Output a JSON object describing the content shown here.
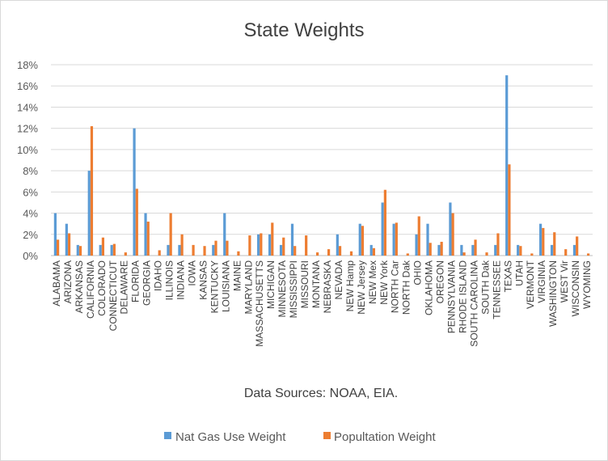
{
  "chart_data": {
    "type": "bar",
    "title": "State Weights",
    "annotation": "Data Sources: NOAA, EIA.",
    "ylim": [
      0,
      18
    ],
    "yticks": [
      "0%",
      "2%",
      "4%",
      "6%",
      "8%",
      "10%",
      "12%",
      "14%",
      "16%",
      "18%"
    ],
    "grid": true,
    "legend_position": "bottom",
    "categories": [
      "ALABAMA",
      "ARIZONA",
      "ARKANSAS",
      "CALIFORNIA",
      "COLORADO",
      "CONNECTICUT",
      "DELAWARE",
      "FLORIDA",
      "GEORGIA",
      "IDAHO",
      "ILLINOIS",
      "INDIANA",
      "IOWA",
      "KANSAS",
      "KENTUCKY",
      "LOUISIANA",
      "MAINE",
      "MARYLAND",
      "MASSACHUSETTS",
      "MICHIGAN",
      "MINNESOTA",
      "MISSISSIPPI",
      "MISSOURI",
      "MONTANA",
      "NEBRASKA",
      "NEVADA",
      "NEW Hamp",
      "NEW Jersey",
      "NEW Mex",
      "NEW York",
      "NORTH Car",
      "NORTH Dak",
      "OHIO",
      "OKLAHOMA",
      "OREGON",
      "PENNSYLVANIA",
      "RHODE ISLAND",
      "SOUTH CAROLINA",
      "SOUTH Dak",
      "TENNESSEE",
      "TEXAS",
      "UTAH",
      "VERMONT",
      "VIRGINIA",
      "WASHINGTON",
      "WEST Vir",
      "WISCONSIN",
      "WYOMING"
    ],
    "series": [
      {
        "name": "Nat Gas Use Weight",
        "color": "#5B9BD5",
        "values": [
          4,
          3,
          1,
          8,
          1,
          1,
          0,
          12,
          4,
          0,
          1,
          1,
          0,
          0,
          1,
          4,
          0,
          0,
          2,
          2,
          1,
          3,
          0,
          0,
          0,
          2,
          0,
          3,
          1,
          5,
          3,
          0,
          2,
          3,
          1,
          5,
          1,
          1,
          0,
          1,
          17,
          1,
          0,
          3,
          1,
          0,
          1,
          0
        ]
      },
      {
        "name": "Popultation Weight",
        "color": "#ED7D31",
        "values": [
          1.5,
          2.1,
          0.9,
          12.2,
          1.7,
          1.1,
          0.3,
          6.3,
          3.2,
          0.5,
          4.0,
          2.0,
          1.0,
          0.9,
          1.4,
          1.4,
          0.4,
          1.9,
          2.1,
          3.1,
          1.7,
          0.9,
          1.9,
          0.3,
          0.6,
          0.9,
          0.4,
          2.8,
          0.7,
          6.2,
          3.1,
          0.2,
          3.7,
          1.2,
          1.3,
          4.0,
          0.3,
          1.5,
          0.3,
          2.1,
          8.6,
          0.9,
          0.2,
          2.6,
          2.2,
          0.6,
          1.8,
          0.2
        ]
      }
    ]
  }
}
